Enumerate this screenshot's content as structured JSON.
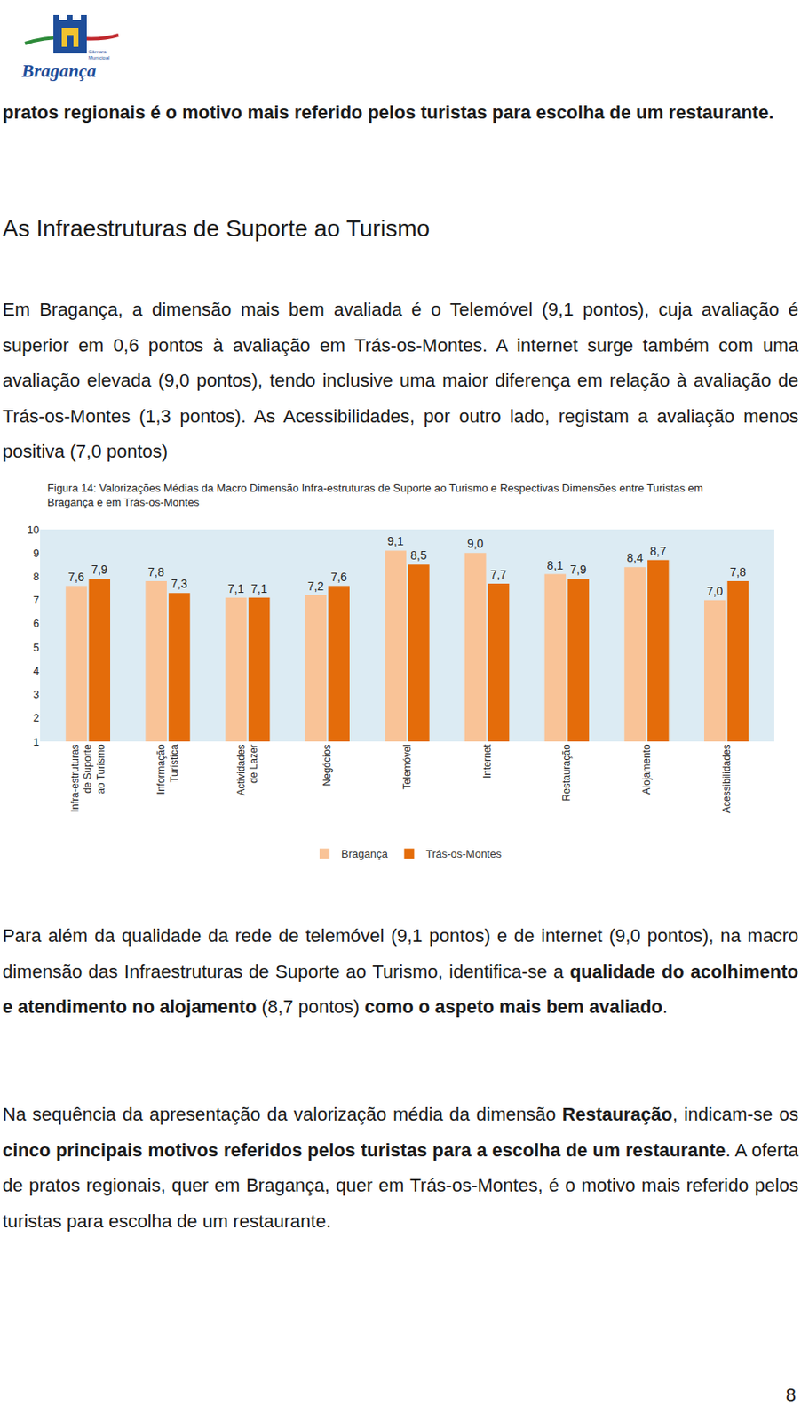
{
  "header": {
    "logo_text": "Bragança",
    "logo_subtext": "Câmara\nMunicipal"
  },
  "intro": "pratos regionais é o motivo mais referido pelos turistas para escolha de um restaurante.",
  "heading": "As Infraestruturas de Suporte ao Turismo",
  "paragraphs": [
    [
      {
        "text": "Em Bragança, a dimensão mais bem avaliada é o Telemóvel (9,1 pontos), cuja avaliação é superior em 0,6 pontos à avaliação em Trás-os-Montes. A internet surge também com uma avaliação elevada (9,0 pontos), tendo inclusive uma maior diferença em relação à avaliação de Trás-os-Montes (1,3 pontos). As Acessibilidades, por outro lado, registam a avaliação menos positiva (7,0 pontos)",
        "bold": false
      }
    ],
    [
      {
        "text": "Para além da qualidade da rede de telemóvel (9,1 pontos) e de internet (9,0 pontos), na macro dimensão das Infraestruturas de Suporte ao Turismo, identifica-se a ",
        "bold": false
      },
      {
        "text": "qualidade do acolhimento e atendimento no alojamento",
        "bold": true
      },
      {
        "text": " (8,7 pontos) ",
        "bold": false
      },
      {
        "text": "como o aspeto mais bem avaliado",
        "bold": true
      },
      {
        "text": ".",
        "bold": false
      }
    ],
    [
      {
        "text": "Na sequência da apresentação da valorização média da dimensão ",
        "bold": false
      },
      {
        "text": "Restauração",
        "bold": true
      },
      {
        "text": ", indicam-se os ",
        "bold": false
      },
      {
        "text": "cinco principais motivos referidos pelos turistas para a escolha de um restaurante",
        "bold": true
      },
      {
        "text": ". A oferta de pratos regionais, quer em Bragança, quer em Trás-os-Montes, é o motivo mais referido pelos turistas para escolha de um restaurante.",
        "bold": false
      }
    ]
  ],
  "page_number": "8",
  "chart_data": {
    "type": "bar",
    "title": "Figura 14: Valorizações Médias da Macro Dimensão Infra-estruturas de Suporte ao Turismo e Respectivas Dimensões entre Turistas em\nBragança e em Trás-os-Montes",
    "categories": [
      "Infra-estruturas\nde Suporte\nao Turismo",
      "Informação\nTurística",
      "Actividades\nde Lazer",
      "Negócios",
      "Telemóvel",
      "Internet",
      "Restauração",
      "Alojamento",
      "Acessibilidades"
    ],
    "series": [
      {
        "name": "Bragança",
        "color": "#f9c397",
        "values": [
          7.6,
          7.8,
          7.1,
          7.2,
          9.1,
          9.0,
          8.1,
          8.4,
          7.0
        ],
        "value_labels": [
          "7,6",
          "7,8",
          "7,1",
          "7,2",
          "9,1",
          "9,0",
          "8,1",
          "8,4",
          "7,0"
        ]
      },
      {
        "name": "Trás-os-Montes",
        "color": "#e46c0a",
        "values": [
          7.9,
          7.3,
          7.1,
          7.6,
          8.5,
          7.7,
          7.9,
          8.7,
          7.8
        ],
        "value_labels": [
          "7,9",
          "7,3",
          "7,1",
          "7,6",
          "8,5",
          "7,7",
          "7,9",
          "8,7",
          "7,8"
        ]
      }
    ],
    "ylim": [
      1,
      10
    ],
    "yticks": [
      1,
      2,
      3,
      4,
      5,
      6,
      7,
      8,
      9,
      10
    ],
    "grid": false,
    "legend": "bottom",
    "data_labels": true
  }
}
